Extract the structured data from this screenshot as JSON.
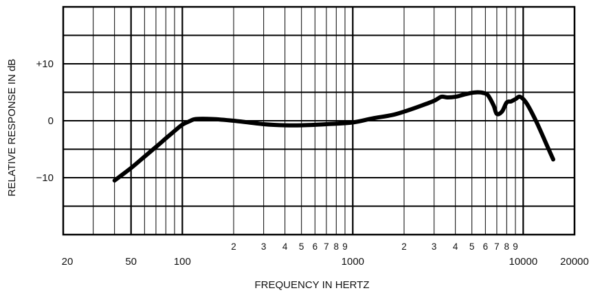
{
  "chart_data": {
    "type": "line",
    "title": "",
    "xlabel": "FREQUENCY IN HERTZ",
    "ylabel": "RELATIVE RESPONSE IN dB",
    "x_scale": "log",
    "xlim": [
      20,
      20000
    ],
    "ylim": [
      -20,
      20
    ],
    "grid": true,
    "legend": "none",
    "line_color": "#000000",
    "x_ticks_major": [
      {
        "value": 20,
        "label": "20"
      },
      {
        "value": 50,
        "label": "50"
      },
      {
        "value": 100,
        "label": "100"
      },
      {
        "value": 1000,
        "label": "1000"
      },
      {
        "value": 10000,
        "label": "10000"
      },
      {
        "value": 20000,
        "label": "20000"
      }
    ],
    "x_ticks_minor": [
      {
        "value": 200,
        "label": "2"
      },
      {
        "value": 300,
        "label": "3"
      },
      {
        "value": 400,
        "label": "4"
      },
      {
        "value": 500,
        "label": "5"
      },
      {
        "value": 600,
        "label": "6"
      },
      {
        "value": 700,
        "label": "7"
      },
      {
        "value": 800,
        "label": "8"
      },
      {
        "value": 900,
        "label": "9"
      },
      {
        "value": 2000,
        "label": "2"
      },
      {
        "value": 3000,
        "label": "3"
      },
      {
        "value": 4000,
        "label": "4"
      },
      {
        "value": 5000,
        "label": "5"
      },
      {
        "value": 6000,
        "label": "6"
      },
      {
        "value": 7000,
        "label": "7"
      },
      {
        "value": 8000,
        "label": "8"
      },
      {
        "value": 9000,
        "label": "9"
      }
    ],
    "y_ticks": [
      {
        "value": 10,
        "label": "+10"
      },
      {
        "value": 0,
        "label": "0"
      },
      {
        "value": -10,
        "label": "−10"
      }
    ],
    "series": [
      {
        "x": [
          40,
          50,
          60,
          70,
          80,
          90,
          100,
          110,
          120,
          150,
          200,
          300,
          400,
          500,
          700,
          1000,
          1300,
          1700,
          2000,
          2500,
          3000,
          3300,
          3600,
          4000,
          4500,
          5000,
          5400,
          5800,
          6200,
          6700,
          7000,
          7500,
          8000,
          8500,
          9000,
          9600,
          10500,
          12000,
          14000,
          15000
        ],
        "y": [
          -10.5,
          -8.3,
          -6.3,
          -4.6,
          -3.1,
          -1.8,
          -0.7,
          -0.1,
          0.3,
          0.3,
          0.0,
          -0.6,
          -0.8,
          -0.8,
          -0.6,
          -0.3,
          0.4,
          1.0,
          1.6,
          2.6,
          3.5,
          4.2,
          4.1,
          4.2,
          4.6,
          4.9,
          5.0,
          4.9,
          4.5,
          2.7,
          1.2,
          1.6,
          3.2,
          3.4,
          3.8,
          4.2,
          3.0,
          -0.3,
          -4.8,
          -6.8
        ]
      }
    ]
  }
}
